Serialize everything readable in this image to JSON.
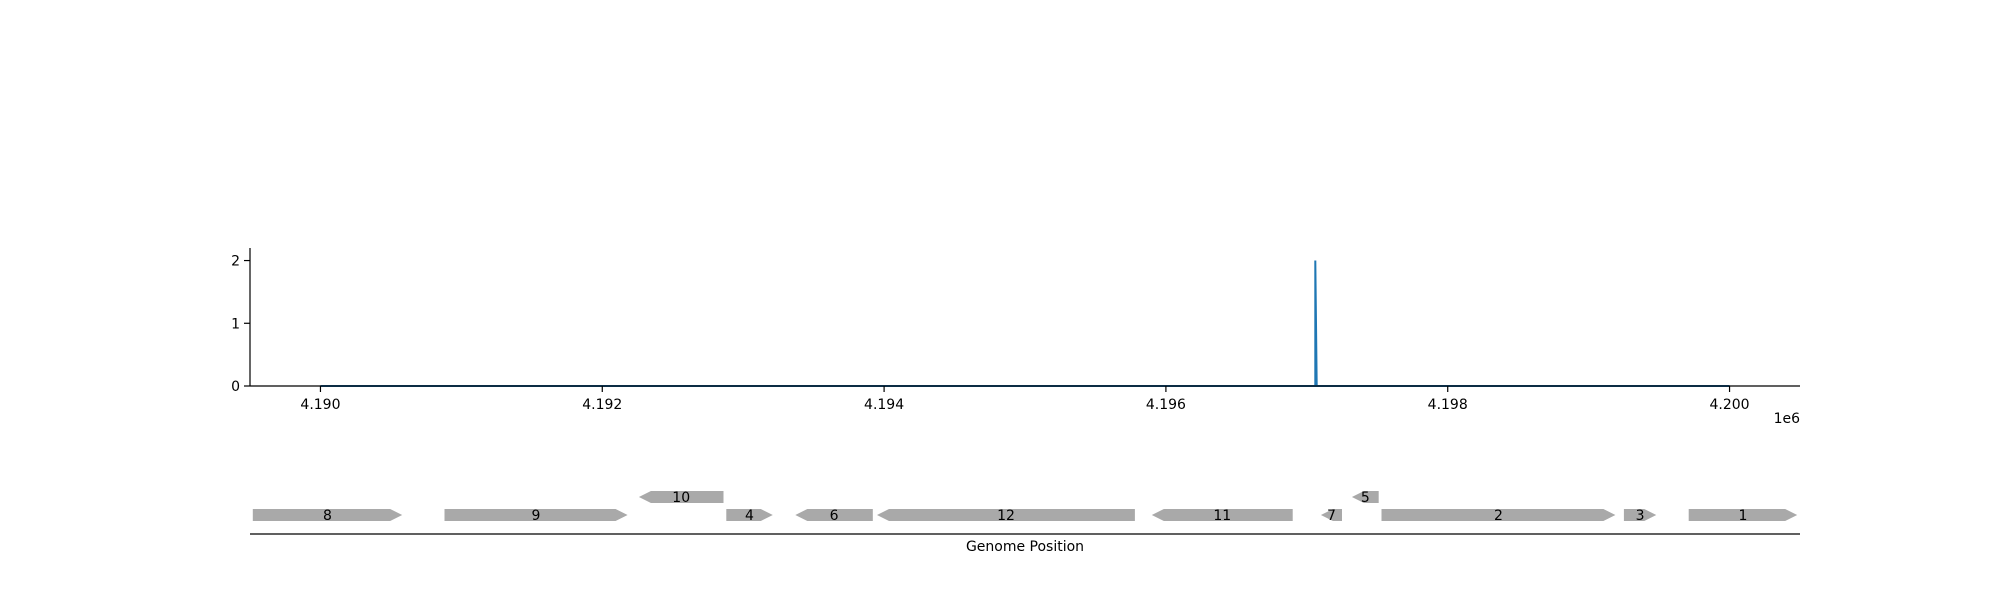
{
  "chart_data": [
    {
      "type": "line",
      "title": "",
      "xlabel": "",
      "ylabel": "",
      "x_offset_label": "1e6",
      "xlim": [
        4.1895,
        4.2005
      ],
      "ylim": [
        0,
        2.2
      ],
      "x_ticks": [
        4.19,
        4.192,
        4.194,
        4.196,
        4.198,
        4.2
      ],
      "x_tick_labels": [
        "4.190",
        "4.192",
        "4.194",
        "4.196",
        "4.198",
        "4.200"
      ],
      "y_ticks": [
        0,
        1,
        2
      ],
      "y_tick_labels": [
        "0",
        "1",
        "2"
      ],
      "grid": false,
      "series": [
        {
          "color": "#1f77b4",
          "x": [
            4.19,
            4.19706,
            4.19706,
            4.19707,
            4.2
          ],
          "y": [
            0,
            0,
            2,
            0,
            0
          ]
        }
      ]
    },
    {
      "type": "gene-track",
      "xlabel": "Genome Position",
      "xlim": [
        4.1895,
        4.2005
      ],
      "feature_color": "#a9a9a9",
      "features": [
        {
          "label": "8",
          "start": 4.18952,
          "end": 4.19058,
          "strand": "+",
          "row": 0
        },
        {
          "label": "9",
          "start": 4.19088,
          "end": 4.19218,
          "strand": "+",
          "row": 0
        },
        {
          "label": "10",
          "start": 4.19226,
          "end": 4.19286,
          "strand": "-",
          "row": 1
        },
        {
          "label": "4",
          "start": 4.19288,
          "end": 4.19321,
          "strand": "+",
          "row": 0
        },
        {
          "label": "6",
          "start": 4.19337,
          "end": 4.19392,
          "strand": "-",
          "row": 0
        },
        {
          "label": "12",
          "start": 4.19395,
          "end": 4.19578,
          "strand": "-",
          "row": 0
        },
        {
          "label": "11",
          "start": 4.1959,
          "end": 4.1969,
          "strand": "-",
          "row": 0
        },
        {
          "label": "7",
          "start": 4.1971,
          "end": 4.19725,
          "strand": "-",
          "row": 0
        },
        {
          "label": "5",
          "start": 4.19732,
          "end": 4.19751,
          "strand": "-",
          "row": 1
        },
        {
          "label": "2",
          "start": 4.19753,
          "end": 4.19919,
          "strand": "+",
          "row": 0
        },
        {
          "label": "3",
          "start": 4.19925,
          "end": 4.19948,
          "strand": "+",
          "row": 0
        },
        {
          "label": "1",
          "start": 4.19971,
          "end": 4.20048,
          "strand": "+",
          "row": 0
        }
      ]
    }
  ]
}
